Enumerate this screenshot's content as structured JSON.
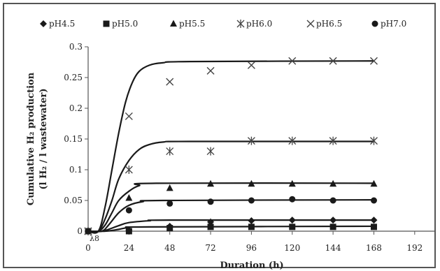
{
  "chart_data": {
    "type": "scatter",
    "xlabel": "Duration (h)",
    "ylabel_line1": "Cumulative H₂ production",
    "ylabel_line2": "(l H₂ / l wastewater)",
    "xlim": [
      0,
      204
    ],
    "ylim": [
      0,
      0.3
    ],
    "x_ticks": [
      "0",
      "24",
      "48",
      "72",
      "96",
      "120",
      "144",
      "168",
      "192"
    ],
    "y_ticks": [
      "0",
      "0.05",
      "0.1",
      "0.15",
      "0.2",
      "0.25",
      "0.3"
    ],
    "grid": false,
    "legend_position": "top",
    "annotation": "λ8",
    "series": [
      {
        "name": "pH4.5",
        "marker": "diamond",
        "color": "#1a1a1a",
        "x": [
          0,
          24,
          48,
          72,
          96,
          120,
          144,
          168
        ],
        "y": [
          0,
          0.002,
          0.008,
          0.015,
          0.017,
          0.018,
          0.018,
          0.018
        ],
        "fit": [
          [
            0,
            0
          ],
          [
            8,
            0
          ],
          [
            12,
            0.003
          ],
          [
            18,
            0.009
          ],
          [
            24,
            0.014
          ],
          [
            36,
            0.017
          ],
          [
            48,
            0.018
          ],
          [
            168,
            0.018
          ]
        ]
      },
      {
        "name": "pH5.0",
        "marker": "square",
        "color": "#1a1a1a",
        "x": [
          0,
          24,
          48,
          72,
          96,
          120,
          144,
          168
        ],
        "y": [
          0,
          0.0,
          0.005,
          0.007,
          0.007,
          0.007,
          0.007,
          0.007
        ],
        "fit": [
          [
            0,
            0
          ],
          [
            10,
            0
          ],
          [
            18,
            0.003
          ],
          [
            24,
            0.006
          ],
          [
            36,
            0.007
          ],
          [
            168,
            0.008
          ]
        ]
      },
      {
        "name": "pH5.5",
        "marker": "triangle",
        "color": "#1a1a1a",
        "x": [
          0,
          24,
          48,
          72,
          96,
          120,
          144,
          168
        ],
        "y": [
          0,
          0.054,
          0.07,
          0.077,
          0.077,
          0.077,
          0.077,
          0.077
        ],
        "fit": [
          [
            0,
            0
          ],
          [
            6,
            0
          ],
          [
            10,
            0.01
          ],
          [
            14,
            0.03
          ],
          [
            18,
            0.05
          ],
          [
            24,
            0.065
          ],
          [
            30,
            0.074
          ],
          [
            40,
            0.078
          ],
          [
            168,
            0.078
          ]
        ]
      },
      {
        "name": "pH6.0",
        "marker": "asterisk",
        "color": "#1a1a1a",
        "x": [
          0,
          24,
          48,
          72,
          96,
          120,
          144,
          168
        ],
        "y": [
          0,
          0.1,
          0.13,
          0.13,
          0.147,
          0.147,
          0.147,
          0.147
        ],
        "fit": [
          [
            0,
            0
          ],
          [
            6,
            0
          ],
          [
            10,
            0.02
          ],
          [
            14,
            0.05
          ],
          [
            18,
            0.085
          ],
          [
            24,
            0.115
          ],
          [
            30,
            0.133
          ],
          [
            36,
            0.141
          ],
          [
            44,
            0.145
          ],
          [
            60,
            0.146
          ],
          [
            168,
            0.146
          ]
        ]
      },
      {
        "name": "pH6.5",
        "marker": "x",
        "color": "#1a1a1a",
        "x": [
          0,
          24,
          48,
          72,
          96,
          120,
          144,
          168
        ],
        "y": [
          0,
          0.187,
          0.243,
          0.261,
          0.27,
          0.277,
          0.277,
          0.277
        ],
        "fit": [
          [
            0,
            0
          ],
          [
            6,
            0
          ],
          [
            10,
            0.04
          ],
          [
            14,
            0.1
          ],
          [
            18,
            0.16
          ],
          [
            22,
            0.21
          ],
          [
            26,
            0.242
          ],
          [
            30,
            0.26
          ],
          [
            36,
            0.27
          ],
          [
            44,
            0.274
          ],
          [
            60,
            0.276
          ],
          [
            168,
            0.277
          ]
        ]
      },
      {
        "name": "pH7.0",
        "marker": "circle",
        "color": "#1a1a1a",
        "x": [
          0,
          24,
          48,
          72,
          96,
          120,
          144,
          168
        ],
        "y": [
          0,
          0.034,
          0.045,
          0.048,
          0.05,
          0.052,
          0.05,
          0.05
        ],
        "fit": [
          [
            0,
            0
          ],
          [
            8,
            0
          ],
          [
            12,
            0.01
          ],
          [
            18,
            0.03
          ],
          [
            24,
            0.042
          ],
          [
            32,
            0.048
          ],
          [
            44,
            0.05
          ],
          [
            168,
            0.051
          ]
        ]
      }
    ]
  }
}
